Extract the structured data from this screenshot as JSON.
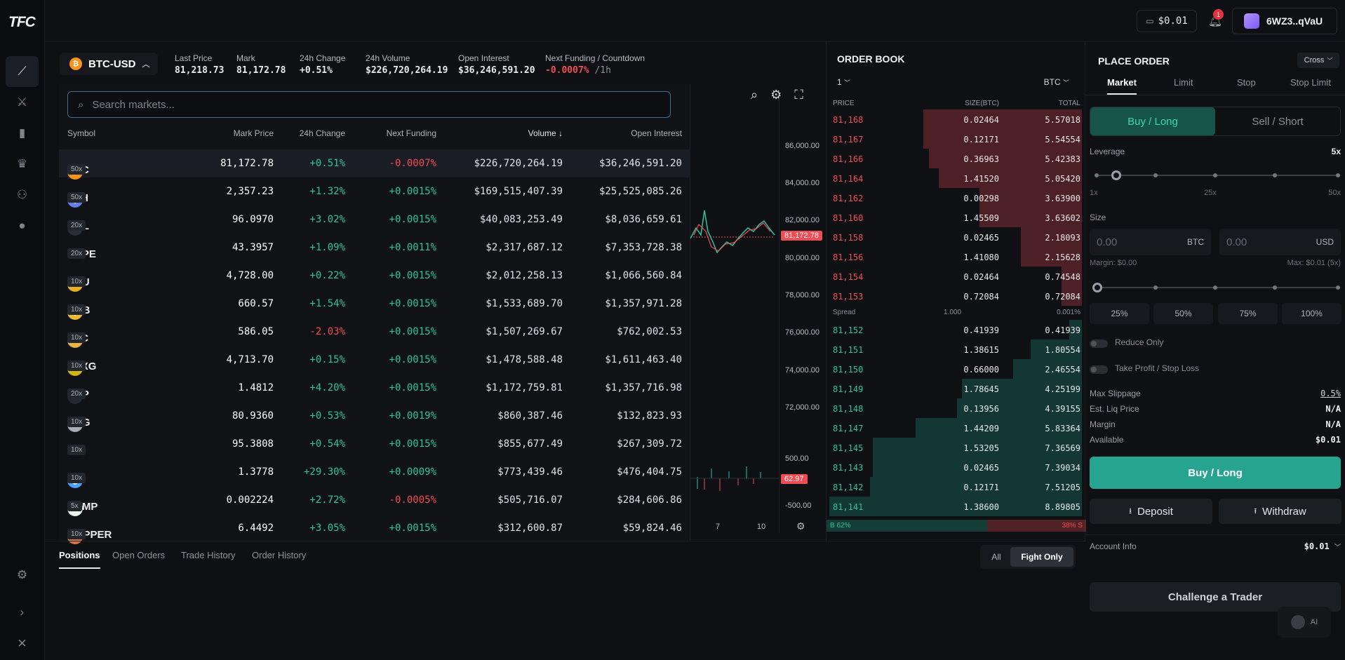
{
  "app": {
    "logo": "TFC"
  },
  "header": {
    "wallet_balance": "$0.01",
    "notification_count": "1",
    "account_name": "6WZ3..qVaU"
  },
  "market": {
    "pair": "BTC-USD",
    "stats": [
      {
        "label": "Last Price",
        "value": "81,218.73"
      },
      {
        "label": "Mark",
        "value": "81,172.78"
      },
      {
        "label": "24h Change",
        "value": "+0.51%"
      },
      {
        "label": "24h Volume",
        "value": "$226,720,264.19"
      },
      {
        "label": "Open Interest",
        "value": "$36,246,591.20"
      },
      {
        "label": "Next Funding / Countdown",
        "value": "-0.0007%",
        "extra": "/1h"
      }
    ]
  },
  "search": {
    "placeholder": "Search markets..."
  },
  "table": {
    "headers": [
      "Symbol",
      "Mark Price",
      "24h Change",
      "Next Funding",
      "Volume ↓",
      "Open Interest"
    ],
    "rows": [
      {
        "symbol": "BTC",
        "lev": "50x",
        "price": "81,172.78",
        "change": "+0.51%",
        "funding": "-0.0007%",
        "volume": "$226,720,264.19",
        "oi": "$36,246,591.20",
        "color": "#f7931a",
        "glyph": "₿"
      },
      {
        "symbol": "ETH",
        "lev": "50x",
        "price": "2,357.23",
        "change": "+1.32%",
        "funding": "+0.0015%",
        "volume": "$169,515,407.39",
        "oi": "$25,525,085.26",
        "color": "#627eea",
        "glyph": "◆"
      },
      {
        "symbol": "SOL",
        "lev": "20x",
        "price": "96.0970",
        "change": "+3.02%",
        "funding": "+0.0015%",
        "volume": "$40,083,253.49",
        "oi": "$8,036,659.61",
        "color": "#2a2d3a",
        "glyph": "≡"
      },
      {
        "symbol": "HYPE",
        "lev": "20x",
        "price": "43.3957",
        "change": "+1.09%",
        "funding": "+0.0011%",
        "volume": "$2,317,687.12",
        "oi": "$7,353,728.38",
        "color": "#0e1014",
        "glyph": "∞"
      },
      {
        "symbol": "XAU",
        "lev": "10x",
        "price": "4,728.00",
        "change": "+0.22%",
        "funding": "+0.0015%",
        "volume": "$2,012,258.13",
        "oi": "$1,066,560.84",
        "color": "#e8b21f",
        "glyph": "▰"
      },
      {
        "symbol": "BNB",
        "lev": "10x",
        "price": "660.57",
        "change": "+1.54%",
        "funding": "+0.0015%",
        "volume": "$1,533,689.70",
        "oi": "$1,357,971.28",
        "color": "#f3ba2f",
        "glyph": "◈"
      },
      {
        "symbol": "ZEC",
        "lev": "10x",
        "price": "586.05",
        "change": "-2.03%",
        "funding": "+0.0015%",
        "volume": "$1,507,269.67",
        "oi": "$762,002.53",
        "color": "#ecb244",
        "glyph": "Z"
      },
      {
        "symbol": "PAXG",
        "lev": "10x",
        "price": "4,713.70",
        "change": "+0.15%",
        "funding": "+0.0015%",
        "volume": "$1,478,588.48",
        "oi": "$1,611,463.40",
        "color": "#d4b50f",
        "glyph": "○"
      },
      {
        "symbol": "XRP",
        "lev": "20x",
        "price": "1.4812",
        "change": "+4.20%",
        "funding": "+0.0015%",
        "volume": "$1,172,759.81",
        "oi": "$1,357,716.98",
        "color": "#23292f",
        "glyph": "✕"
      },
      {
        "symbol": "XAG",
        "lev": "10x",
        "price": "80.9360",
        "change": "+0.53%",
        "funding": "+0.0019%",
        "volume": "$860,387.46",
        "oi": "$132,823.93",
        "color": "#a9adb5",
        "glyph": "▰"
      },
      {
        "symbol": "CL",
        "lev": "10x",
        "price": "95.3808",
        "change": "+0.54%",
        "funding": "+0.0015%",
        "volume": "$855,677.49",
        "oi": "$267,309.72",
        "color": "#0e1014",
        "glyph": "●"
      },
      {
        "symbol": "SUI",
        "lev": "10x",
        "price": "1.3778",
        "change": "+29.30%",
        "funding": "+0.0009%",
        "volume": "$773,439.46",
        "oi": "$476,404.75",
        "color": "#4da2ff",
        "glyph": "◍"
      },
      {
        "symbol": "PUMP",
        "lev": "5x",
        "price": "0.002224",
        "change": "+2.72%",
        "funding": "-0.0005%",
        "volume": "$505,716.07",
        "oi": "$284,606.86",
        "color": "#e8f5e9",
        "glyph": "⬭"
      },
      {
        "symbol": "COPPER",
        "lev": "10x",
        "price": "6.4492",
        "change": "+3.05%",
        "funding": "+0.0015%",
        "volume": "$312,600.87",
        "oi": "$59,824.46",
        "color": "#d9774b",
        "glyph": "▰"
      }
    ]
  },
  "chart": {
    "y_labels": [
      "86,000.00",
      "84,000.00",
      "82,000.00",
      "80,000.00",
      "78,000.00",
      "76,000.00",
      "74,000.00",
      "72,000.00",
      "500.00",
      "-500.00"
    ],
    "price_tag": "81,172.78",
    "volume_tag": "62.97",
    "x_labels": [
      "7",
      "10"
    ]
  },
  "orderbook": {
    "title": "ORDER BOOK",
    "group": "1",
    "unit": "BTC",
    "headers": [
      "PRICE",
      "SIZE(BTC)",
      "TOTAL"
    ],
    "asks": [
      {
        "price": "81,168",
        "size": "0.02464",
        "total": "5.57018",
        "depth": 0.62
      },
      {
        "price": "81,167",
        "size": "0.12171",
        "total": "5.54554",
        "depth": 0.62
      },
      {
        "price": "81,166",
        "size": "0.36963",
        "total": "5.42383",
        "depth": 0.6
      },
      {
        "price": "81,164",
        "size": "1.41520",
        "total": "5.05420",
        "depth": 0.56
      },
      {
        "price": "81,162",
        "size": "0.00298",
        "total": "3.63900",
        "depth": 0.4
      },
      {
        "price": "81,160",
        "size": "1.45509",
        "total": "3.63602",
        "depth": 0.4
      },
      {
        "price": "81,158",
        "size": "0.02465",
        "total": "2.18093",
        "depth": 0.24
      },
      {
        "price": "81,156",
        "size": "1.41080",
        "total": "2.15628",
        "depth": 0.24
      },
      {
        "price": "81,154",
        "size": "0.02464",
        "total": "0.74548",
        "depth": 0.08
      },
      {
        "price": "81,153",
        "size": "0.72084",
        "total": "0.72084",
        "depth": 0.08
      }
    ],
    "spread": {
      "label": "Spread",
      "value": "1.000",
      "pct": "0.001%"
    },
    "bids": [
      {
        "price": "81,152",
        "size": "0.41939",
        "total": "0.41939",
        "depth": 0.05
      },
      {
        "price": "81,151",
        "size": "1.38615",
        "total": "1.80554",
        "depth": 0.2
      },
      {
        "price": "81,150",
        "size": "0.66000",
        "total": "2.46554",
        "depth": 0.27
      },
      {
        "price": "81,149",
        "size": "1.78645",
        "total": "4.25199",
        "depth": 0.47
      },
      {
        "price": "81,148",
        "size": "0.13956",
        "total": "4.39155",
        "depth": 0.49
      },
      {
        "price": "81,147",
        "size": "1.44209",
        "total": "5.83364",
        "depth": 0.65
      },
      {
        "price": "81,145",
        "size": "1.53205",
        "total": "7.36569",
        "depth": 0.82
      },
      {
        "price": "81,143",
        "size": "0.02465",
        "total": "7.39034",
        "depth": 0.82
      },
      {
        "price": "81,142",
        "size": "0.12171",
        "total": "7.51205",
        "depth": 0.83
      },
      {
        "price": "81,141",
        "size": "1.38600",
        "total": "8.89805",
        "depth": 0.99
      }
    ],
    "ratio": {
      "buy": "B 62%",
      "sell": "38% S",
      "buy_fraction": 0.62
    }
  },
  "place_order": {
    "title": "PLACE ORDER",
    "margin_mode": "Cross",
    "tabs": [
      "Market",
      "Limit",
      "Stop",
      "Stop Limit"
    ],
    "buy_label": "Buy / Long",
    "sell_label": "Sell / Short",
    "leverage_label": "Leverage",
    "leverage_value": "5x",
    "leverage_marks": [
      "1x",
      "25x",
      "50x"
    ],
    "size_label": "Size",
    "size_placeholder": "0.00",
    "size_unit_1": "BTC",
    "size_unit_2": "USD",
    "margin_text": "Margin: $0.00",
    "max_text": "Max: $0.01 (5x)",
    "pcts": [
      "25%",
      "50%",
      "75%",
      "100%"
    ],
    "reduce_only": "Reduce Only",
    "tp_sl": "Take Profit / Stop Loss",
    "info": [
      {
        "k": "Max Slippage",
        "v": "0.5%"
      },
      {
        "k": "Est. Liq Price",
        "v": "N/A"
      },
      {
        "k": "Margin",
        "v": "N/A"
      },
      {
        "k": "Available",
        "v": "$0.01"
      }
    ],
    "submit": "Buy / Long",
    "deposit": "Deposit",
    "withdraw": "Withdraw",
    "account_info": "Account Info",
    "account_value": "$0.01",
    "challenge": "Challenge a Trader",
    "ai": "AI"
  },
  "bottom": {
    "tabs": [
      "Positions",
      "Open Orders",
      "Trade History",
      "Order History"
    ],
    "filters": [
      "All",
      "Fight Only"
    ]
  }
}
